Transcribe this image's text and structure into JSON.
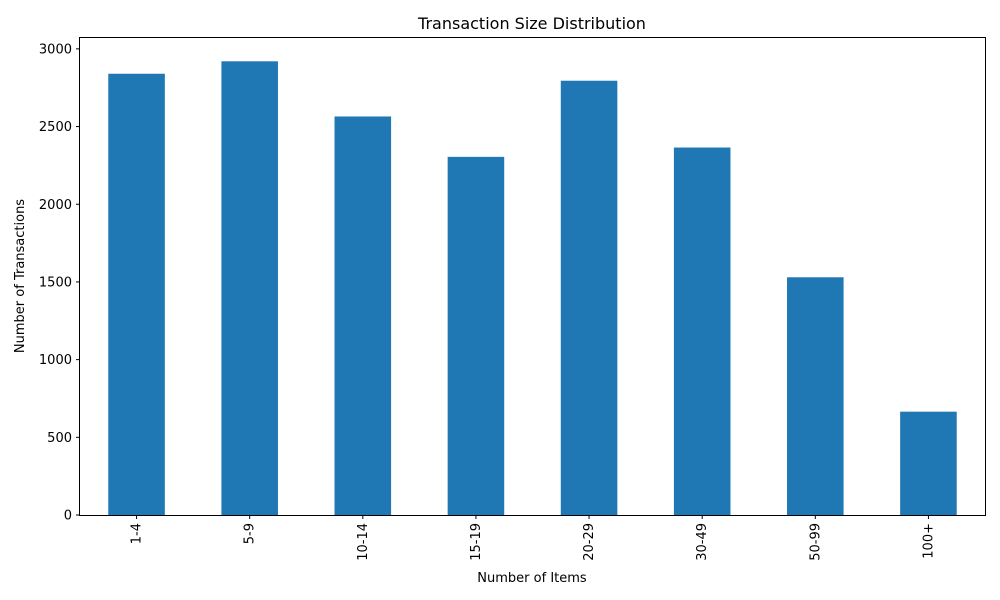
{
  "chart_data": {
    "type": "bar",
    "title": "Transaction Size Distribution",
    "xlabel": "Number of Items",
    "ylabel": "Number of Transactions",
    "categories": [
      "1-4",
      "5-9",
      "10-14",
      "15-19",
      "20-29",
      "30-49",
      "50-99",
      "100+"
    ],
    "values": [
      2840,
      2920,
      2565,
      2305,
      2795,
      2365,
      1530,
      665
    ],
    "ylim": [
      0,
      3070
    ],
    "yticks": [
      0,
      500,
      1000,
      1500,
      2000,
      2500,
      3000
    ],
    "grid": false,
    "legend": "none",
    "bar_color": "#1f77b4",
    "x_tick_rotation": "vertical"
  }
}
